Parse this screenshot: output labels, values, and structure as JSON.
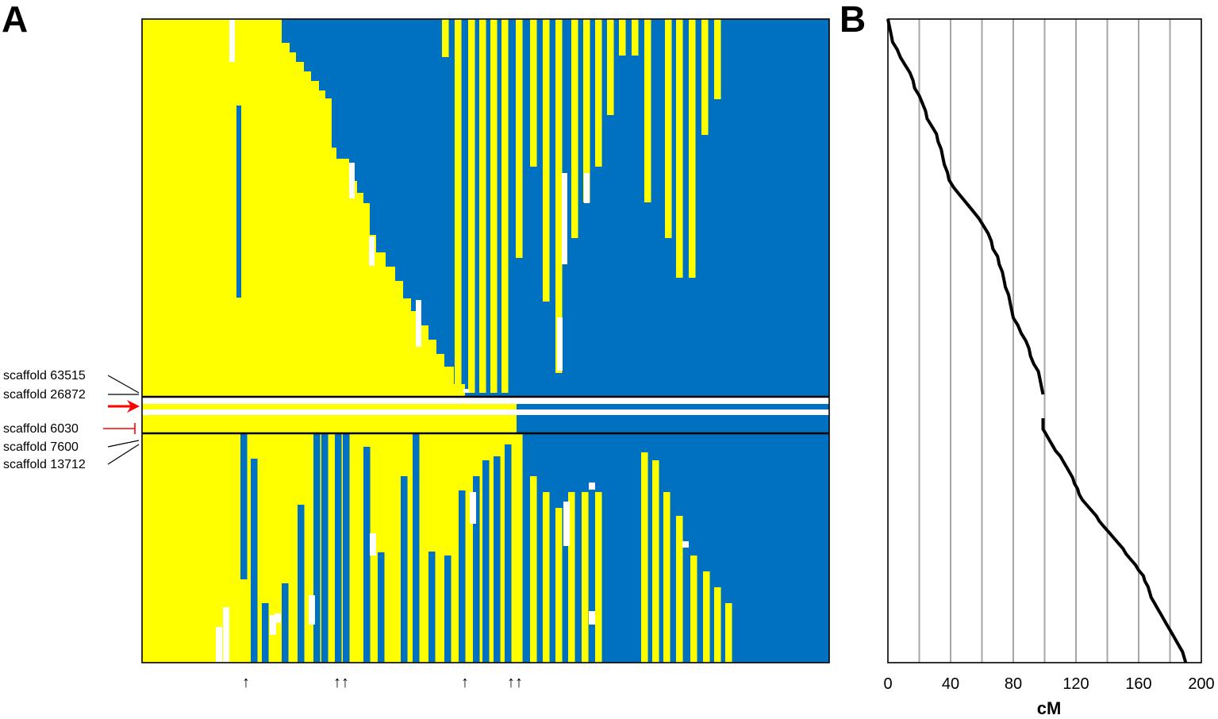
{
  "figure": {
    "panel_a_letter": "A",
    "panel_b_letter": "B"
  },
  "colors": {
    "allele_a": "#ffff00",
    "allele_b": "#0070c0",
    "missing": "#ffffff",
    "highlight_arrow": "#ff0000",
    "curve": "#000000",
    "grid": "#a6a6a6"
  },
  "chart_data": [
    {
      "type": "heatmap",
      "panel": "A",
      "row_labels": [
        {
          "text": "scaffold 63515",
          "color": "#000000"
        },
        {
          "text": "scaffold 26872",
          "color": "#000000"
        },
        {
          "text": "scaffold 6030",
          "color": "#ff0000"
        },
        {
          "text": "scaffold 7600",
          "color": "#000000"
        },
        {
          "text": "scaffold 13712",
          "color": "#000000"
        }
      ],
      "highlight_marker": "red-arrow",
      "bottom_arrows": [
        "↑",
        "↑↑",
        "↑",
        "↑↑"
      ]
    },
    {
      "type": "line",
      "panel": "B",
      "xlabel": "cM",
      "xlim": [
        0,
        200
      ],
      "xticks": [
        "0",
        "40",
        "80",
        "120",
        "160",
        "200"
      ],
      "grid": true,
      "grid_every": 20,
      "segments": [
        {
          "x": [
            0,
            1,
            2,
            3,
            6,
            8,
            11,
            14,
            16,
            17,
            20,
            22,
            24,
            25,
            28,
            31,
            32,
            34,
            35,
            36,
            38,
            39,
            42,
            46,
            50,
            54,
            58,
            61,
            64,
            66,
            67,
            70,
            71,
            73,
            74,
            75,
            77,
            78,
            79,
            80,
            83,
            85,
            88,
            90,
            91,
            93,
            96,
            97,
            98,
            99
          ],
          "y_frac": [
            0.0,
            0.02,
            0.04,
            0.06,
            0.08,
            0.1,
            0.12,
            0.14,
            0.16,
            0.18,
            0.2,
            0.22,
            0.24,
            0.26,
            0.28,
            0.3,
            0.32,
            0.34,
            0.36,
            0.38,
            0.4,
            0.42,
            0.44,
            0.46,
            0.48,
            0.5,
            0.52,
            0.54,
            0.56,
            0.58,
            0.6,
            0.62,
            0.64,
            0.66,
            0.68,
            0.7,
            0.72,
            0.74,
            0.76,
            0.78,
            0.8,
            0.82,
            0.84,
            0.86,
            0.88,
            0.9,
            0.92,
            0.94,
            0.96,
            0.98
          ]
        },
        {
          "x": [
            99,
            99,
            101,
            103,
            105,
            107,
            110,
            112,
            114,
            116,
            118,
            119,
            121,
            122,
            124,
            127,
            130,
            133,
            135,
            138,
            141,
            144,
            147,
            150,
            152,
            155,
            158,
            160,
            163,
            164,
            166,
            167,
            168,
            170,
            172,
            174,
            176,
            178,
            180,
            182,
            184,
            186,
            188,
            189,
            190
          ],
          "y_frac": [
            0.0,
            0.04,
            0.06,
            0.08,
            0.1,
            0.12,
            0.14,
            0.16,
            0.18,
            0.2,
            0.22,
            0.24,
            0.26,
            0.28,
            0.3,
            0.32,
            0.34,
            0.36,
            0.38,
            0.4,
            0.42,
            0.44,
            0.46,
            0.48,
            0.5,
            0.52,
            0.54,
            0.56,
            0.58,
            0.6,
            0.62,
            0.64,
            0.66,
            0.68,
            0.7,
            0.72,
            0.74,
            0.76,
            0.78,
            0.8,
            0.82,
            0.84,
            0.86,
            0.88,
            0.9
          ]
        }
      ]
    }
  ]
}
